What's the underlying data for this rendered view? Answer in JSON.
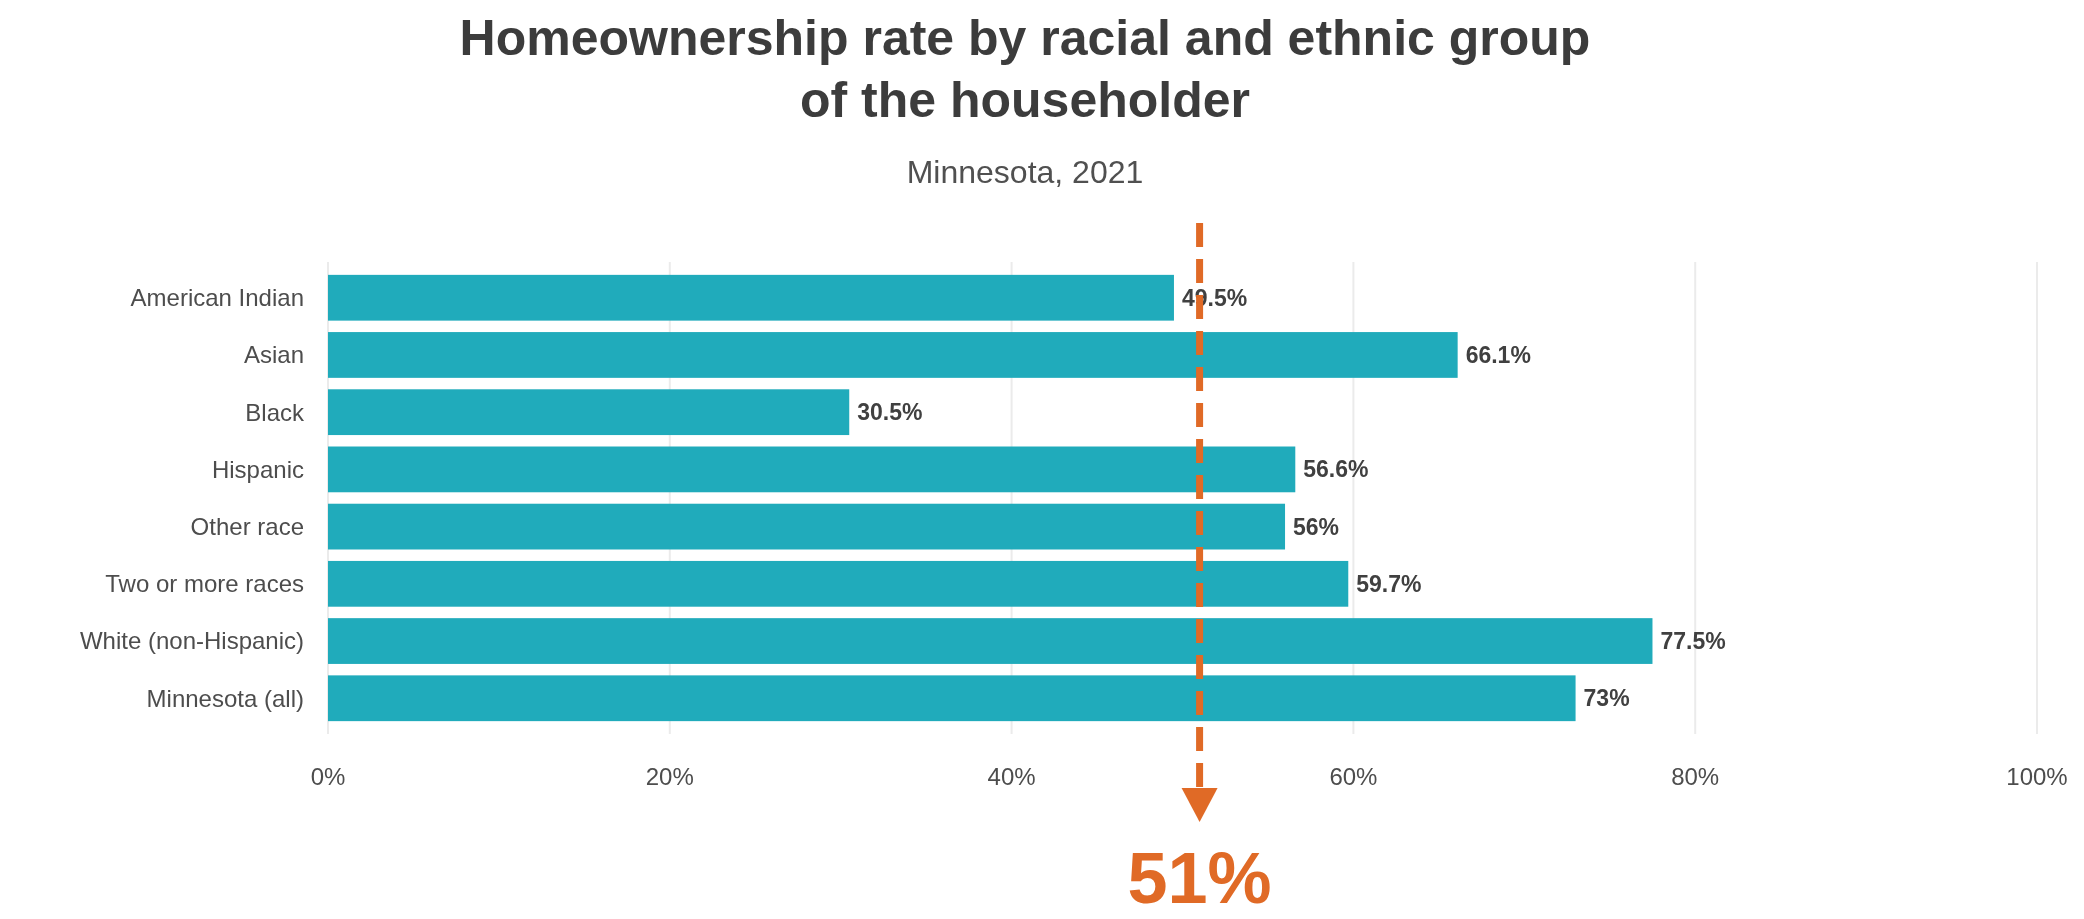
{
  "chart_data": {
    "type": "bar",
    "orientation": "horizontal",
    "title": "Homeownership rate by racial and ethnic group\nof the householder",
    "subtitle": "Minnesota, 2021",
    "categories": [
      "American Indian",
      "Asian",
      "Black",
      "Hispanic",
      "Other race",
      "Two or more races",
      "White (non-Hispanic)",
      "Minnesota (all)"
    ],
    "values": [
      49.5,
      66.1,
      30.5,
      56.6,
      56,
      59.7,
      77.5,
      73
    ],
    "value_labels": [
      "49.5%",
      "66.1%",
      "30.5%",
      "56.6%",
      "56%",
      "59.7%",
      "77.5%",
      "73%"
    ],
    "color": "#20abbb",
    "xlim": [
      0,
      100
    ],
    "xticks": [
      {
        "value": 0,
        "label": "0%"
      },
      {
        "value": 20,
        "label": "20%"
      },
      {
        "value": 40,
        "label": "40%"
      },
      {
        "value": 60,
        "label": "60%"
      },
      {
        "value": 80,
        "label": "80%"
      },
      {
        "value": 100,
        "label": "100%"
      }
    ],
    "grid": "x",
    "ref_lines": [
      {
        "axis": "x",
        "value": 51,
        "label": "51%",
        "color": "#e06a26",
        "line_style": "dashed"
      }
    ]
  }
}
